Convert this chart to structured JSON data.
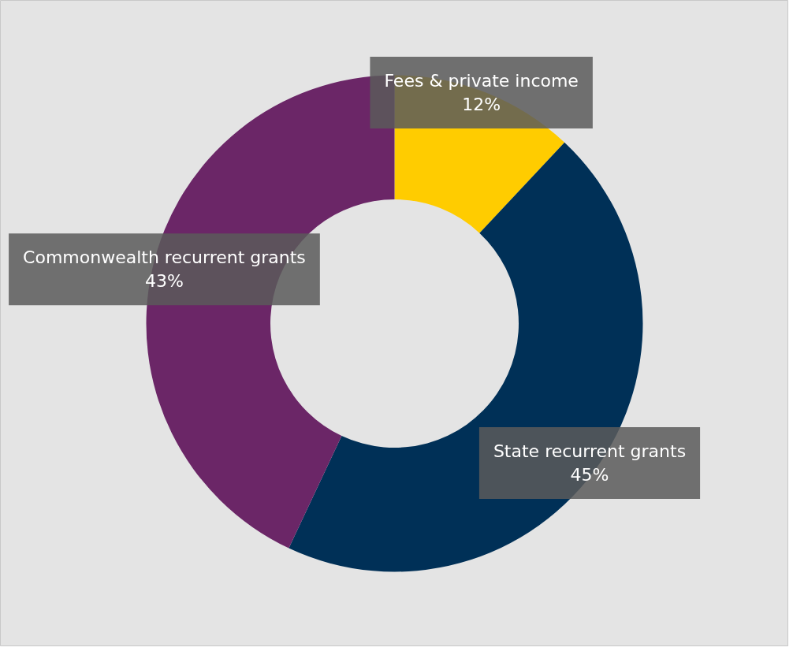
{
  "chart_data": {
    "type": "donut",
    "categories": [
      "Fees & private income",
      "State recurrent grants",
      "Commonwealth recurrent grants"
    ],
    "values": [
      12,
      45,
      43
    ],
    "colors": [
      "#ffcc00",
      "#003057",
      "#6b2667"
    ],
    "value_labels": [
      "12%",
      "45%",
      "43%"
    ]
  }
}
